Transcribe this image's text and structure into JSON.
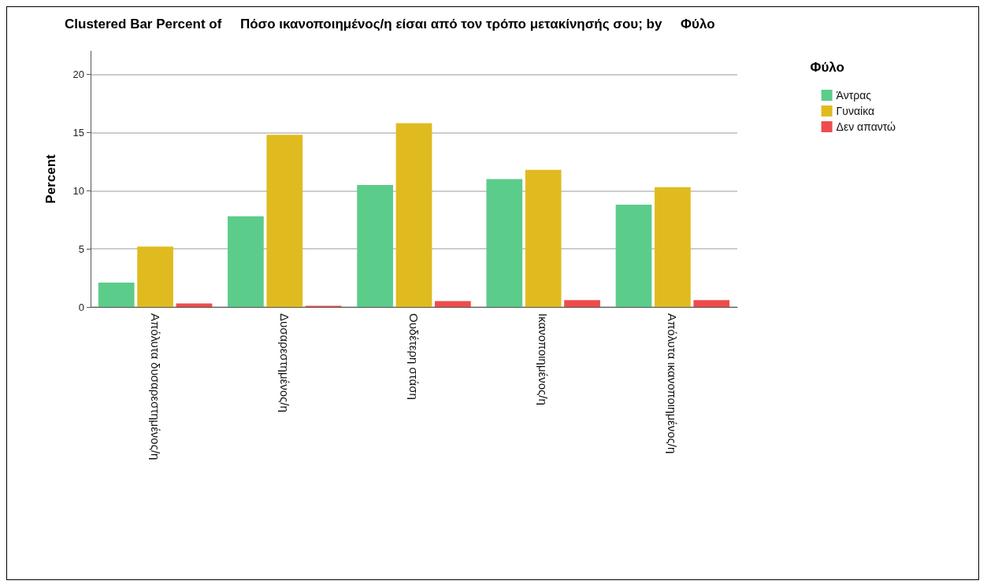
{
  "chart_data": {
    "type": "bar",
    "title": "Clustered Bar Percent of     Πόσο ικανοποιημένος/η είσαι από τον τρόπο μετακίνησής σου; by     Φύλο",
    "ylabel": "Percent",
    "legend_title": "Φύλο",
    "categories": [
      "Απόλυτα δυσαρεστημένος/η",
      "Δυσαρεστημένος/η",
      "Ουδέτερη στάση",
      "Ικανοποιημένος/η",
      "Απόλυτα ικανοποιημένος/η"
    ],
    "series": [
      {
        "name": "Άντρας",
        "color": "#5ccc8a",
        "values": [
          2.1,
          7.8,
          10.5,
          11.0,
          8.8
        ]
      },
      {
        "name": "Γυναίκα",
        "color": "#e0bb1f",
        "values": [
          5.2,
          14.8,
          15.8,
          11.8,
          10.3
        ]
      },
      {
        "name": "Δεν απαντώ",
        "color": "#ee4c4c",
        "values": [
          0.3,
          0.1,
          0.5,
          0.6,
          0.6
        ]
      }
    ],
    "ylim": [
      0,
      22
    ],
    "yticks": [
      0,
      5,
      10,
      15,
      20
    ],
    "grid": "y",
    "legend": "top right"
  }
}
